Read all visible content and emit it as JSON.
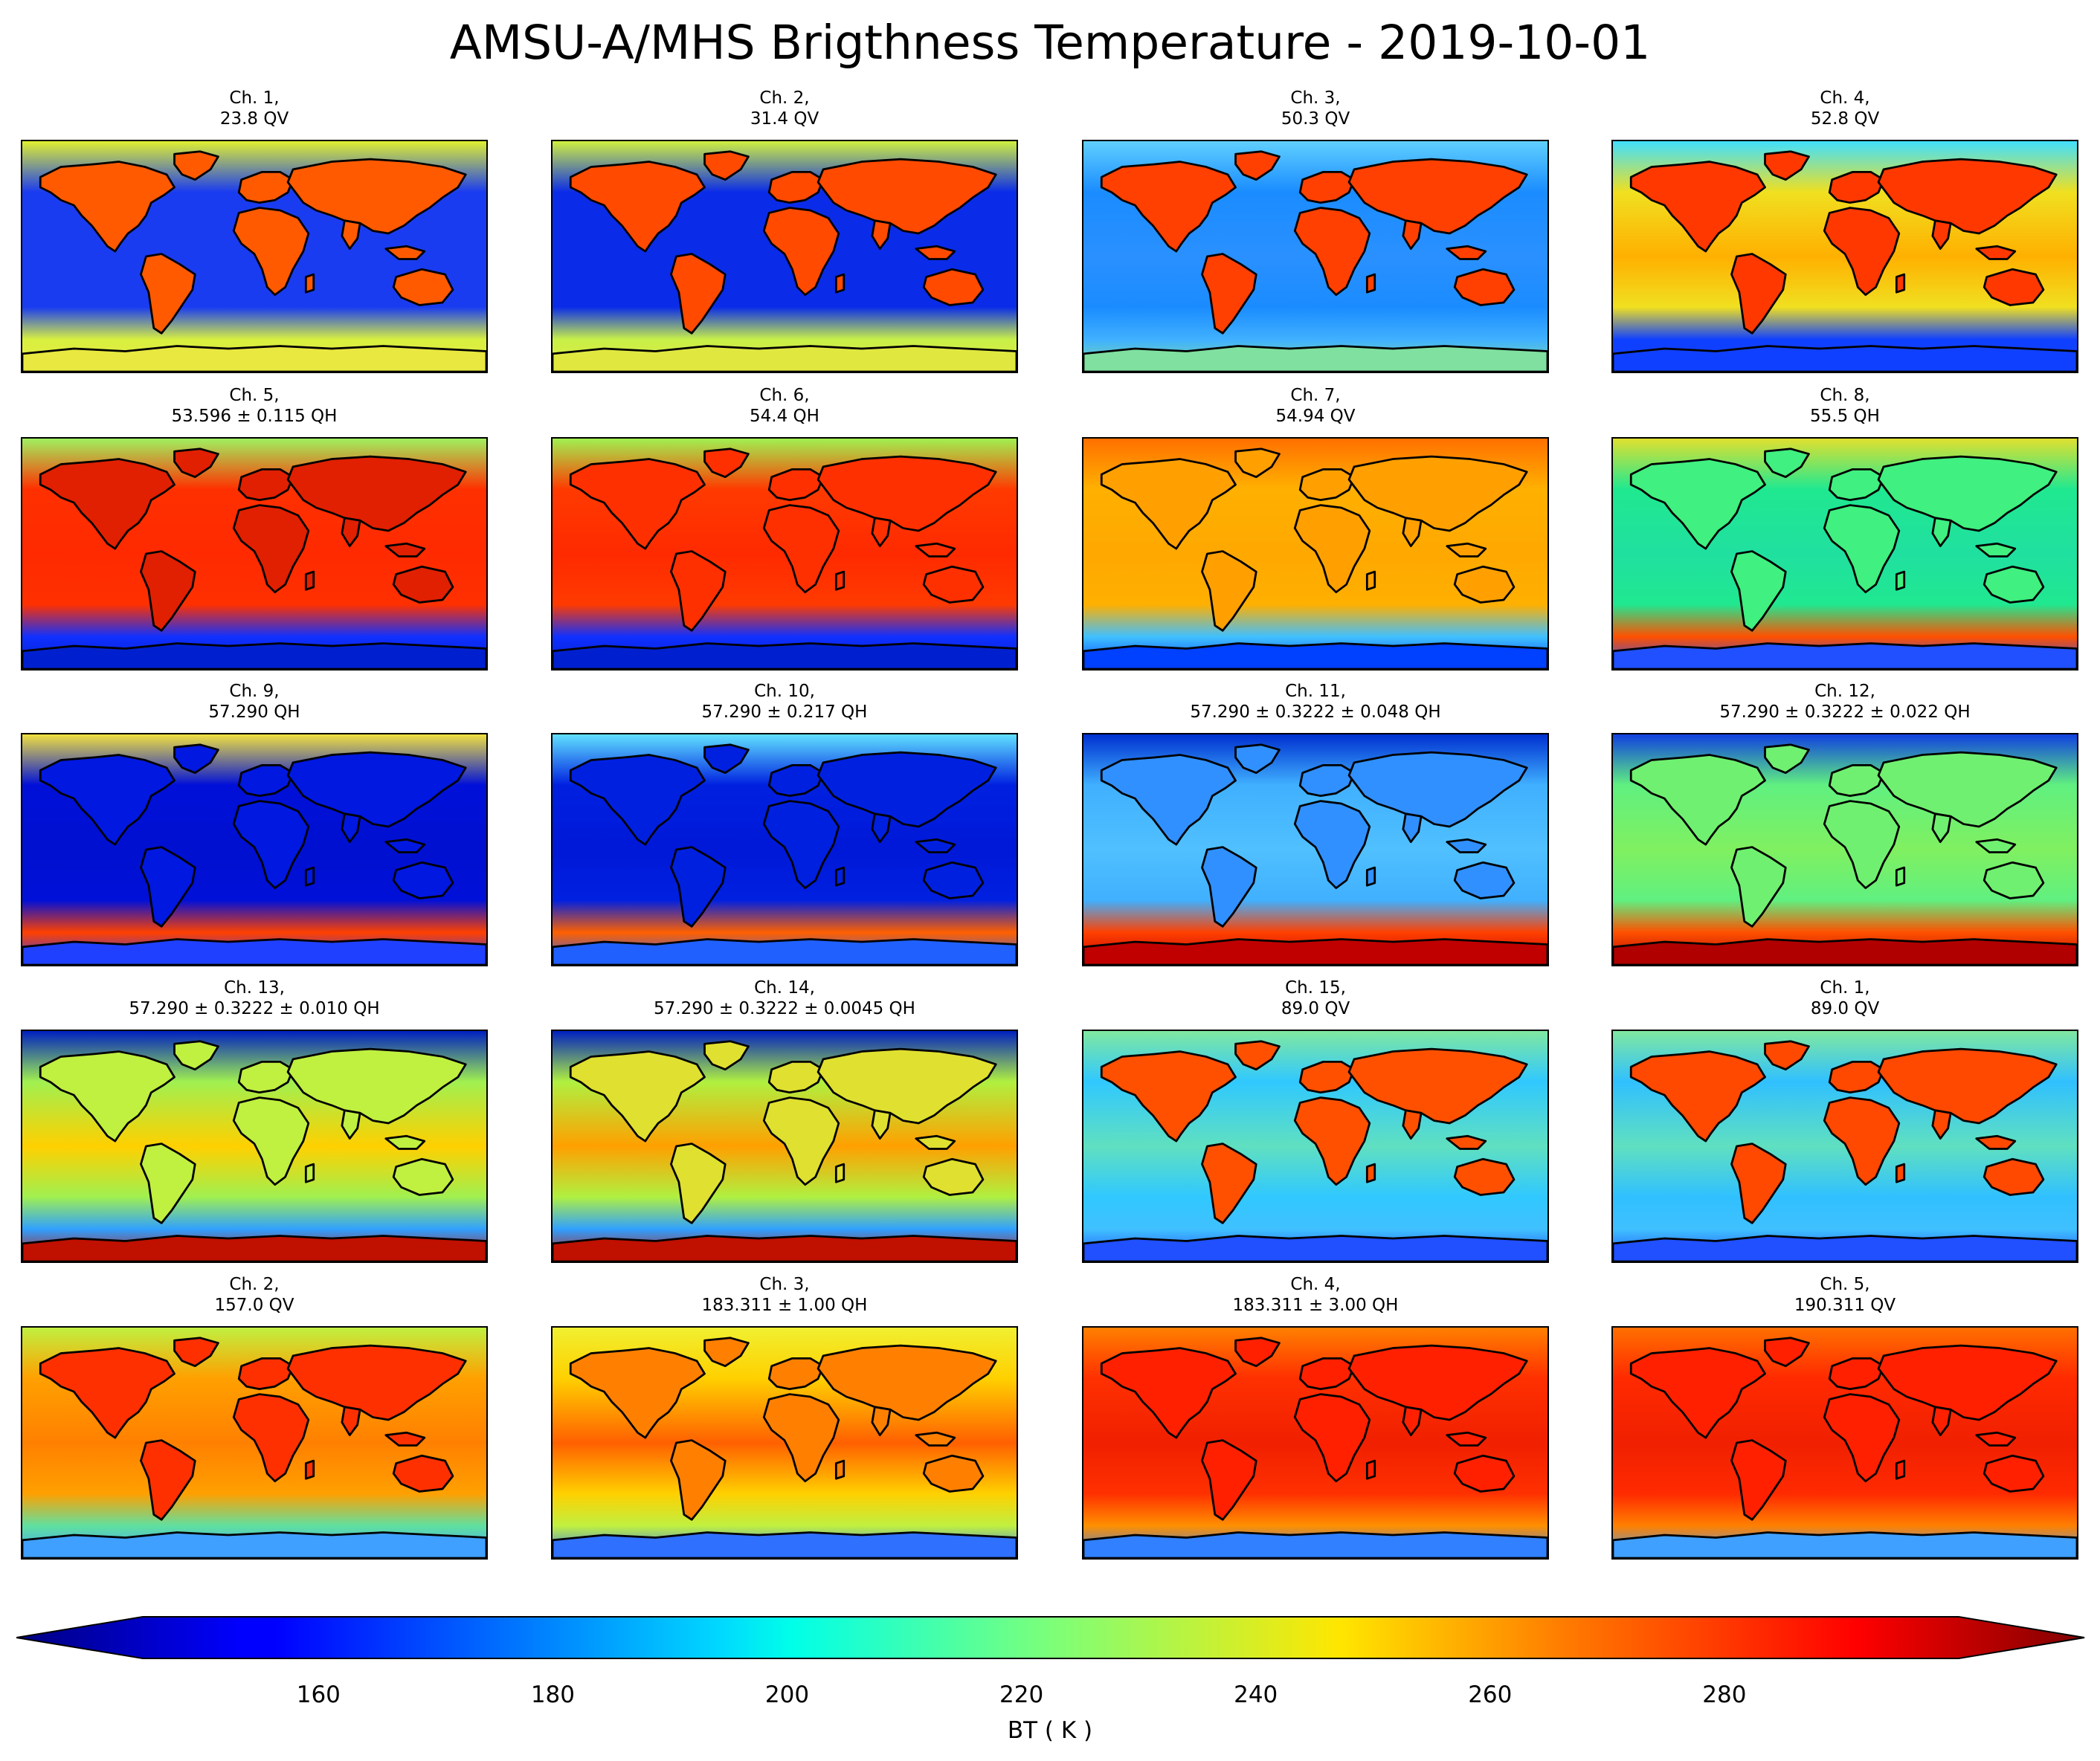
{
  "title": "AMSU-A/MHS Brigthness Temperature - 2019-10-01",
  "chart_data": {
    "type": "heatmap",
    "title": "AMSU-A/MHS Brigthness Temperature - 2019-10-01",
    "colormap": "jet",
    "colorbar": {
      "label": "BT ( K )",
      "vmin": 145,
      "vmax": 300,
      "extend": "both",
      "orientation": "horizontal",
      "ticks": [
        160,
        180,
        200,
        220,
        240,
        260,
        280
      ]
    },
    "grid": {
      "rows": 5,
      "cols": 4
    },
    "panels": [
      {
        "line1": "Ch. 1,",
        "line2": "23.8 QV",
        "ocean": "#1a3cf0",
        "land": "#ff5a00",
        "polar_north": "#e0f030",
        "polar_south": "#d8f040",
        "ice": "#e8e840",
        "equator": "#1a3cf0"
      },
      {
        "line1": "Ch. 2,",
        "line2": "31.4 QV",
        "ocean": "#0a2ce8",
        "land": "#ff4a00",
        "polar_north": "#d0f040",
        "polar_south": "#c8f048",
        "ice": "#e0e840",
        "equator": "#0a2ce8"
      },
      {
        "line1": "Ch. 3,",
        "line2": "50.3 QV",
        "ocean": "#1a8cff",
        "land": "#ff4000",
        "polar_north": "#60d0ff",
        "polar_south": "#40b0ff",
        "ice": "#80e0a0",
        "equator": "#2a90ff"
      },
      {
        "line1": "Ch. 4,",
        "line2": "52.8 QV",
        "ocean": "#f0e020",
        "land": "#ff3800",
        "polar_north": "#40e0ff",
        "polar_south": "#1040ff",
        "ice": "#1040ff",
        "equator": "#ffb000"
      },
      {
        "line1": "Ch. 5,",
        "line2": "53.596 ± 0.115 QH",
        "ocean": "#ff3000",
        "land": "#e02000",
        "polar_north": "#a0f060",
        "polar_south": "#1030ff",
        "ice": "#0020d0",
        "equator": "#ff2a00"
      },
      {
        "line1": "Ch. 6,",
        "line2": "54.4 QH",
        "ocean": "#ff3a00",
        "land": "#ff3000",
        "polar_north": "#a0f050",
        "polar_south": "#1030ff",
        "ice": "#0020d0",
        "equator": "#ff2a00"
      },
      {
        "line1": "Ch. 7,",
        "line2": "54.94 QV",
        "ocean": "#ffb000",
        "land": "#ffa000",
        "polar_north": "#ff7000",
        "polar_south": "#40c0ff",
        "ice": "#0040ff",
        "equator": "#ffa800"
      },
      {
        "line1": "Ch. 8,",
        "line2": "55.5 QH",
        "ocean": "#20e890",
        "land": "#40f080",
        "polar_north": "#e0e030",
        "polar_south": "#ff5000",
        "ice": "#2050ff",
        "equator": "#20e0a0"
      },
      {
        "line1": "Ch. 9,",
        "line2": "57.290 QH",
        "ocean": "#0010d8",
        "land": "#0018e0",
        "polar_north": "#f0e040",
        "polar_south": "#ff4000",
        "ice": "#2040ff",
        "equator": "#0010d0"
      },
      {
        "line1": "Ch. 10,",
        "line2": "57.290 ± 0.217 QH",
        "ocean": "#0020e0",
        "land": "#0020e0",
        "polar_north": "#60e0ff",
        "polar_south": "#ff6000",
        "ice": "#2060ff",
        "equator": "#0018d8"
      },
      {
        "line1": "Ch. 11,",
        "line2": "57.290 ± 0.3222 ± 0.048 QH",
        "ocean": "#40b0ff",
        "land": "#3090ff",
        "polar_north": "#0030d0",
        "polar_south": "#ff4000",
        "ice": "#c00000",
        "equator": "#50c0ff"
      },
      {
        "line1": "Ch. 12,",
        "line2": "57.290 ± 0.3222 ± 0.022 QH",
        "ocean": "#60f080",
        "land": "#70f070",
        "polar_north": "#1040e0",
        "polar_south": "#ff5000",
        "ice": "#b00000",
        "equator": "#80f060"
      },
      {
        "line1": "Ch. 13,",
        "line2": "57.290 ± 0.3222 ± 0.010 QH",
        "ocean": "#a0f050",
        "land": "#c0f040",
        "polar_north": "#0020c0",
        "polar_south": "#30a0ff",
        "ice": "#c01000",
        "equator": "#ffd000"
      },
      {
        "line1": "Ch. 14,",
        "line2": "57.290 ± 0.3222 ± 0.0045 QH",
        "ocean": "#b0f040",
        "land": "#e0e030",
        "polar_north": "#0020c0",
        "polar_south": "#30a0ff",
        "ice": "#c01000",
        "equator": "#ffa000"
      },
      {
        "line1": "Ch. 15,",
        "line2": "89.0 QV",
        "ocean": "#30c8ff",
        "land": "#ff5000",
        "polar_north": "#80e8a0",
        "polar_south": "#40c0ff",
        "ice": "#2050ff",
        "equator": "#60e0c0"
      },
      {
        "line1": "Ch. 1,",
        "line2": "89.0 QV",
        "ocean": "#30c0ff",
        "land": "#ff4800",
        "polar_north": "#80e8a0",
        "polar_south": "#40c0ff",
        "ice": "#2050ff",
        "equator": "#60e0c0"
      },
      {
        "line1": "Ch. 2,",
        "line2": "157.0 QV",
        "ocean": "#ffa000",
        "land": "#ff3000",
        "polar_north": "#c0f040",
        "polar_south": "#60e0a0",
        "ice": "#40a0ff",
        "equator": "#ff8000"
      },
      {
        "line1": "Ch. 3,",
        "line2": "183.311 ± 1.00 QH",
        "ocean": "#ffd000",
        "land": "#ff8000",
        "polar_north": "#f0f030",
        "polar_south": "#c0f040",
        "ice": "#3070ff",
        "equator": "#ff6000"
      },
      {
        "line1": "Ch. 4,",
        "line2": "183.311 ± 3.00 QH",
        "ocean": "#ff3000",
        "land": "#ff2000",
        "polar_north": "#ff8000",
        "polar_south": "#ff9000",
        "ice": "#3080ff",
        "equator": "#f02000"
      },
      {
        "line1": "Ch. 5,",
        "line2": "190.311 QV",
        "ocean": "#ff2a00",
        "land": "#ff2000",
        "polar_north": "#ff7000",
        "polar_south": "#ff8000",
        "ice": "#40a0ff",
        "equator": "#f02000"
      }
    ]
  }
}
